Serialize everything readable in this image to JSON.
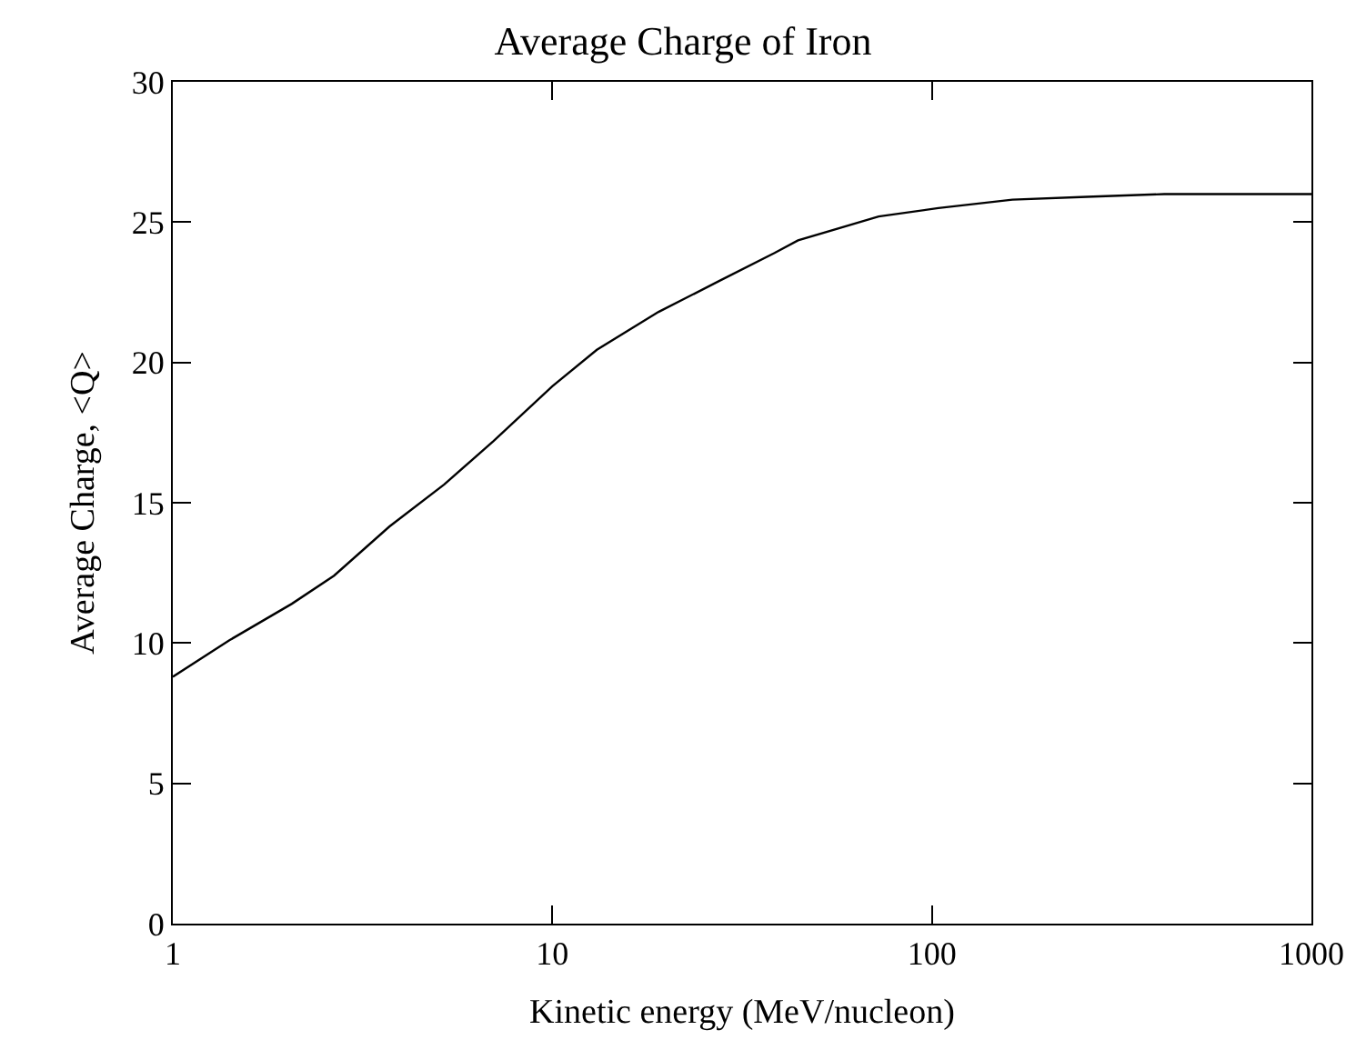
{
  "chart_data": {
    "type": "line",
    "title": "Average Charge of Iron",
    "xlabel": "Kinetic energy (MeV/nucleon)",
    "ylabel": "Average Charge, <Q>",
    "log": "x",
    "marker": "none",
    "line_style": "solid",
    "xlim": [
      1,
      1000
    ],
    "xticks": [
      1,
      10,
      100,
      1000
    ],
    "ylim": [
      0,
      30
    ],
    "yticks": [
      0,
      5,
      10,
      15,
      20,
      25,
      30
    ],
    "x": [
      1,
      1.41,
      2.06,
      2.66,
      3.72,
      5.19,
      7.0,
      10,
      13.1,
      19.05,
      27.5,
      38.5,
      44.4,
      72.4,
      104,
      163,
      256,
      410,
      1000
    ],
    "series": [
      {
        "color": "#000000",
        "values": [
          8.8,
          10.1,
          11.4,
          12.4,
          14.15,
          15.65,
          17.2,
          19.15,
          20.45,
          21.8,
          22.9,
          23.9,
          24.35,
          25.2,
          25.5,
          25.8,
          25.9,
          26.0,
          26.0
        ]
      }
    ]
  }
}
